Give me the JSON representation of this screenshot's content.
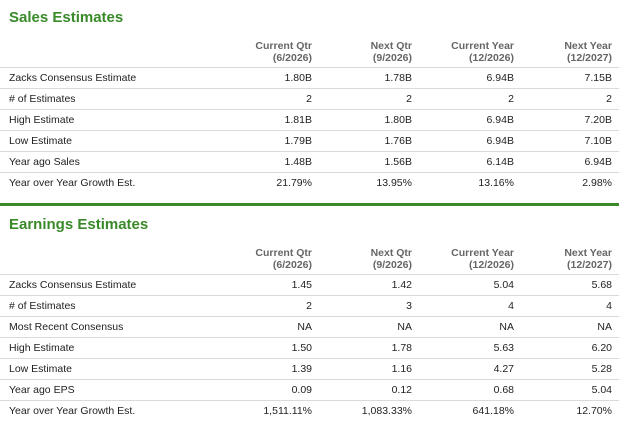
{
  "sales": {
    "title": "Sales Estimates",
    "headers": [
      {
        "line1": "Current Qtr",
        "line2": "(6/2026)"
      },
      {
        "line1": "Next Qtr",
        "line2": "(9/2026)"
      },
      {
        "line1": "Current Year",
        "line2": "(12/2026)"
      },
      {
        "line1": "Next Year",
        "line2": "(12/2027)"
      }
    ],
    "rows": [
      {
        "label": "Zacks Consensus Estimate",
        "values": [
          "1.80B",
          "1.78B",
          "6.94B",
          "7.15B"
        ]
      },
      {
        "label": "# of Estimates",
        "values": [
          "2",
          "2",
          "2",
          "2"
        ]
      },
      {
        "label": "High Estimate",
        "values": [
          "1.81B",
          "1.80B",
          "6.94B",
          "7.20B"
        ]
      },
      {
        "label": "Low Estimate",
        "values": [
          "1.79B",
          "1.76B",
          "6.94B",
          "7.10B"
        ]
      },
      {
        "label": "Year ago Sales",
        "values": [
          "1.48B",
          "1.56B",
          "6.14B",
          "6.94B"
        ]
      },
      {
        "label": "Year over Year Growth Est.",
        "values": [
          "21.79%",
          "13.95%",
          "13.16%",
          "2.98%"
        ]
      }
    ]
  },
  "earnings": {
    "title": "Earnings Estimates",
    "headers": [
      {
        "line1": "Current Qtr",
        "line2": "(6/2026)"
      },
      {
        "line1": "Next Qtr",
        "line2": "(9/2026)"
      },
      {
        "line1": "Current Year",
        "line2": "(12/2026)"
      },
      {
        "line1": "Next Year",
        "line2": "(12/2027)"
      }
    ],
    "rows": [
      {
        "label": "Zacks Consensus Estimate",
        "values": [
          "1.45",
          "1.42",
          "5.04",
          "5.68"
        ]
      },
      {
        "label": "# of Estimates",
        "values": [
          "2",
          "3",
          "4",
          "4"
        ]
      },
      {
        "label": "Most Recent Consensus",
        "values": [
          "NA",
          "NA",
          "NA",
          "NA"
        ]
      },
      {
        "label": "High Estimate",
        "values": [
          "1.50",
          "1.78",
          "5.63",
          "6.20"
        ]
      },
      {
        "label": "Low Estimate",
        "values": [
          "1.39",
          "1.16",
          "4.27",
          "5.28"
        ]
      },
      {
        "label": "Year ago EPS",
        "values": [
          "0.09",
          "0.12",
          "0.68",
          "5.04"
        ]
      },
      {
        "label": "Year over Year Growth Est.",
        "values": [
          "1,511.11%",
          "1,083.33%",
          "641.18%",
          "12.70%"
        ]
      }
    ]
  }
}
